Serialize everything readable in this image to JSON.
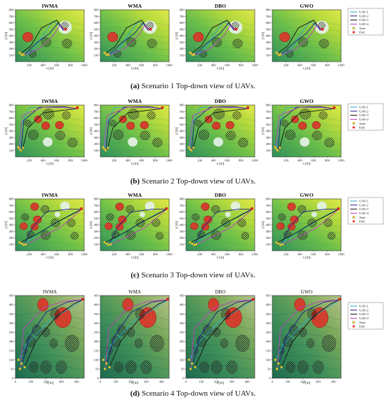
{
  "common": {
    "xlabel": "x [m]",
    "ylabel": "y [m]",
    "legend_uav": [
      "UAV-1",
      "UAV-2",
      "UAV-3",
      "UAV-4"
    ],
    "legend_start": "Start",
    "legend_end": "End",
    "colors": {
      "uav1": "#2aa9c9",
      "uav2": "#1a1a8c",
      "uav3": "#111111",
      "uav4": "#c040c0",
      "start": "#e8d020",
      "end": "#ff2020",
      "threat_red": "#c83020",
      "threat_grid": "#333333",
      "threat_white": "#e8f4ea"
    }
  },
  "rows": [
    {
      "caption_tag": "(a)",
      "caption_text": "Scenario 1 Top-down view of UAVs.",
      "chart_data": {
        "type": "scatter",
        "titles": [
          "IWMA",
          "WMA",
          "DBO",
          "GWO"
        ],
        "xlim": [
          0,
          1000
        ],
        "ylim": [
          0,
          800
        ],
        "xticks": [
          200,
          400,
          600,
          800,
          1000
        ],
        "yticks": [
          100,
          200,
          300,
          400,
          500,
          600,
          700,
          800
        ],
        "legend": [
          "UAV-1",
          "UAV-2",
          "UAV-3",
          "UAV-4",
          "Start",
          "End"
        ],
        "start_points": [
          [
            80,
            120
          ],
          [
            100,
            100
          ],
          [
            60,
            140
          ],
          [
            120,
            110
          ]
        ],
        "end_point": [
          730,
          500
        ],
        "threats": [
          {
            "kind": "red",
            "cx": 180,
            "cy": 380,
            "r": 75
          },
          {
            "kind": "grid",
            "cx": 450,
            "cy": 300,
            "r": 70
          },
          {
            "kind": "grid",
            "cx": 750,
            "cy": 280,
            "r": 70
          },
          {
            "kind": "grid",
            "cx": 250,
            "cy": 120,
            "r": 55
          },
          {
            "kind": "white",
            "cx": 720,
            "cy": 530,
            "r": 100
          },
          {
            "kind": "grid",
            "cx": 720,
            "cy": 560,
            "r": 50
          }
        ]
      }
    },
    {
      "caption_tag": "(b)",
      "caption_text": "Scenario 2 Top-down view of UAVs.",
      "chart_data": {
        "type": "scatter",
        "titles": [
          "IWMA",
          "WMA",
          "DBO",
          "GWO"
        ],
        "xlim": [
          0,
          1000
        ],
        "ylim": [
          0,
          800
        ],
        "xticks": [
          200,
          400,
          600,
          800,
          1000
        ],
        "yticks": [
          100,
          200,
          300,
          400,
          500,
          600,
          700,
          800
        ],
        "legend": [
          "UAV-1",
          "UAV-2",
          "UAV-3",
          "UAV-4",
          "Start",
          "End"
        ],
        "start_points": [
          [
            60,
            120
          ],
          [
            80,
            100
          ],
          [
            110,
            140
          ],
          [
            40,
            150
          ]
        ],
        "end_point": [
          900,
          760
        ],
        "threats": [
          {
            "kind": "grid",
            "cx": 480,
            "cy": 660,
            "r": 80
          },
          {
            "kind": "red",
            "cx": 330,
            "cy": 580,
            "r": 55
          },
          {
            "kind": "red",
            "cx": 440,
            "cy": 480,
            "r": 60
          },
          {
            "kind": "red",
            "cx": 640,
            "cy": 490,
            "r": 60
          },
          {
            "kind": "grid",
            "cx": 740,
            "cy": 640,
            "r": 60
          },
          {
            "kind": "grid",
            "cx": 260,
            "cy": 340,
            "r": 75
          },
          {
            "kind": "grid",
            "cx": 650,
            "cy": 330,
            "r": 70
          },
          {
            "kind": "white",
            "cx": 470,
            "cy": 230,
            "r": 70
          },
          {
            "kind": "grid",
            "cx": 830,
            "cy": 220,
            "r": 70
          },
          {
            "kind": "grid",
            "cx": 180,
            "cy": 520,
            "r": 50
          }
        ]
      }
    },
    {
      "caption_tag": "(c)",
      "caption_text": "Scenario 3 Top-down view of UAVs.",
      "chart_data": {
        "type": "scatter",
        "titles": [
          "IWMA",
          "WMA",
          "DBO",
          "GWO"
        ],
        "xlim": [
          0,
          1000
        ],
        "ylim": [
          0,
          800
        ],
        "xticks": [
          200,
          400,
          600,
          800,
          1000
        ],
        "yticks": [
          100,
          200,
          300,
          400,
          500,
          600,
          700,
          800
        ],
        "legend": [
          "UAV-1",
          "UAV-2",
          "UAV-3",
          "UAV-4",
          "Start",
          "End"
        ],
        "start_points": [
          [
            90,
            110
          ],
          [
            120,
            90
          ],
          [
            60,
            130
          ],
          [
            150,
            100
          ]
        ],
        "end_point": [
          960,
          650
        ],
        "threats": [
          {
            "kind": "red",
            "cx": 280,
            "cy": 680,
            "r": 60
          },
          {
            "kind": "grid",
            "cx": 430,
            "cy": 640,
            "r": 60
          },
          {
            "kind": "white",
            "cx": 720,
            "cy": 690,
            "r": 70
          },
          {
            "kind": "white",
            "cx": 610,
            "cy": 560,
            "r": 40
          },
          {
            "kind": "grid",
            "cx": 140,
            "cy": 520,
            "r": 55
          },
          {
            "kind": "red",
            "cx": 320,
            "cy": 480,
            "r": 60
          },
          {
            "kind": "red",
            "cx": 120,
            "cy": 380,
            "r": 55
          },
          {
            "kind": "grid",
            "cx": 580,
            "cy": 430,
            "r": 65
          },
          {
            "kind": "grid",
            "cx": 810,
            "cy": 430,
            "r": 60
          },
          {
            "kind": "grid",
            "cx": 220,
            "cy": 250,
            "r": 55
          },
          {
            "kind": "grid",
            "cx": 440,
            "cy": 240,
            "r": 70
          },
          {
            "kind": "grid",
            "cx": 860,
            "cy": 230,
            "r": 55
          },
          {
            "kind": "red",
            "cx": 280,
            "cy": 370,
            "r": 55
          }
        ]
      }
    },
    {
      "caption_tag": "(d)",
      "caption_text": "Scenario 4 Top-down view of UAVs.",
      "chart_data": {
        "type": "scatter",
        "titles": [
          "IWMA",
          "WMA",
          "DBO",
          "GWO"
        ],
        "xlim": [
          0,
          450
        ],
        "ylim": [
          0,
          450
        ],
        "xticks": [
          0,
          100,
          200,
          300,
          400
        ],
        "yticks": [
          0,
          50,
          100,
          150,
          200,
          250,
          300,
          350,
          400,
          450
        ],
        "legend": [
          "UAV-1",
          "UAV-2",
          "UAV-3",
          "UAV-4",
          "Start",
          "End"
        ],
        "start_points": [
          [
            20,
            100
          ],
          [
            40,
            80
          ],
          [
            60,
            60
          ],
          [
            30,
            50
          ]
        ],
        "end_point": [
          440,
          430
        ],
        "threats": [
          {
            "kind": "red",
            "cx": 180,
            "cy": 400,
            "r": 35
          },
          {
            "kind": "red",
            "cx": 310,
            "cy": 330,
            "r": 55
          },
          {
            "kind": "grid",
            "cx": 260,
            "cy": 350,
            "r": 30
          },
          {
            "kind": "grid",
            "cx": 140,
            "cy": 260,
            "r": 30
          },
          {
            "kind": "grid",
            "cx": 200,
            "cy": 250,
            "r": 25
          },
          {
            "kind": "grid",
            "cx": 100,
            "cy": 200,
            "r": 30
          },
          {
            "kind": "grid",
            "cx": 250,
            "cy": 190,
            "r": 25
          },
          {
            "kind": "grid",
            "cx": 370,
            "cy": 190,
            "r": 45
          },
          {
            "kind": "grid",
            "cx": 120,
            "cy": 60,
            "r": 30
          },
          {
            "kind": "grid",
            "cx": 200,
            "cy": 60,
            "r": 35
          },
          {
            "kind": "grid",
            "cx": 300,
            "cy": 60,
            "r": 35
          },
          {
            "kind": "grid",
            "cx": 60,
            "cy": 150,
            "r": 20
          }
        ]
      }
    }
  ]
}
